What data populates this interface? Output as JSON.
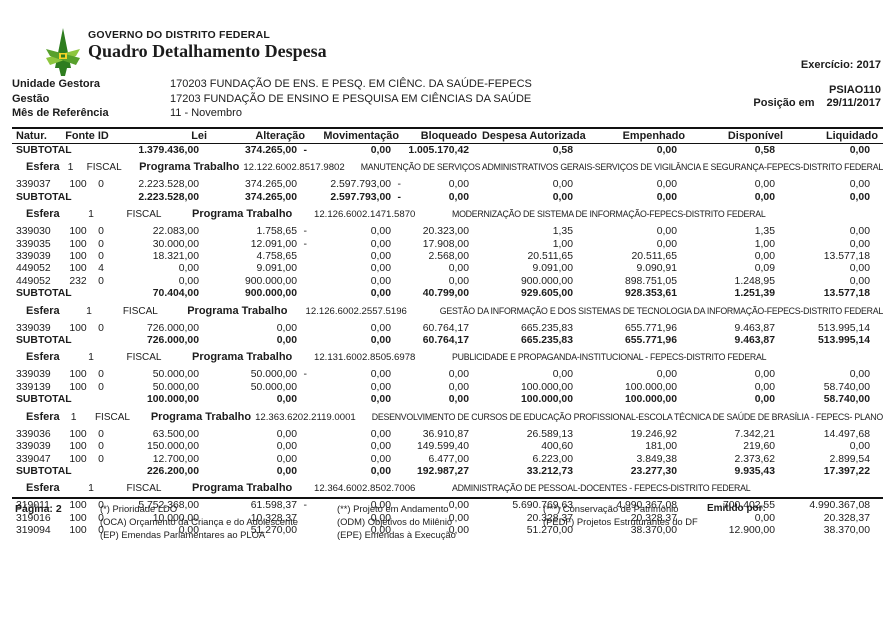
{
  "header": {
    "government": "GOVERNO DO DISTRITO FEDERAL",
    "title": "Quadro Detalhamento Despesa",
    "exercicio": "Exercício: 2017",
    "report_code": "PSIAO110",
    "posicao_label": "Posição em",
    "posicao_value": "29/11/2017",
    "logo_colors": {
      "dark_green": "#2e7d1f",
      "light_green": "#8dc63f",
      "accent_yellow": "#f5d327"
    }
  },
  "info": {
    "unidade_gestora_label": "Unidade Gestora",
    "unidade_gestora_value": "170203 FUNDAÇÃO DE ENS. E PESQ. EM CIÊNC. DA SAÚDE-FEPECS",
    "gestao_label": "Gestão",
    "gestao_value": "17203   FUNDAÇÃO DE ENSINO E PESQUISA EM CIÊNCIAS DA SAÚDE",
    "mes_label": "Mês de Referência",
    "mes_value": "11 - Novembro"
  },
  "table": {
    "columns": {
      "natur": "Natur.",
      "fonte_id": "Fonte ID",
      "lei": "Lei",
      "alteracao": "Alteração",
      "movimentacao": "Movimentação",
      "bloqueado": "Bloqueado",
      "despesa_autorizada": "Despesa Autorizada",
      "empenhado": "Empenhado",
      "disponivel": "Disponível",
      "liquidado": "Liquidado"
    },
    "row_labels": {
      "subtotal": "SUBTOTAL",
      "esfera": "Esfera",
      "programa": "Programa Trabalho"
    },
    "grand_subtotal": [
      "1.379.436,00",
      "374.265,00 -",
      "0,00",
      "1.005.170,42",
      "0,58",
      "0,00",
      "0,58",
      "0,00"
    ],
    "sections": [
      {
        "esfera_num": "1",
        "tipo": "FISCAL",
        "codigo": "12.122.6002.8517.9802",
        "descricao": "MANUTENÇÃO DE SERVIÇOS ADMINISTRATIVOS GERAIS-SERVIÇOS DE VIGILÂNCIA E SEGURANÇA-FEPECS-DISTRITO FEDERAL",
        "rows": [
          {
            "natur": "339037",
            "fonte": "100",
            "id": "0",
            "values": [
              "2.223.528,00",
              "374.265,00",
              "2.597.793,00 -",
              "0,00",
              "0,00",
              "0,00",
              "0,00",
              "0,00"
            ]
          }
        ],
        "subtotal": [
          "2.223.528,00",
          "374.265,00",
          "2.597.793,00 -",
          "0,00",
          "0,00",
          "0,00",
          "0,00",
          "0,00"
        ]
      },
      {
        "esfera_num": "1",
        "tipo": "FISCAL",
        "codigo": "12.126.6002.1471.5870",
        "descricao": "MODERNIZAÇÃO DE SISTEMA DE INFORMAÇÃO-FEPECS-DISTRITO FEDERAL",
        "rows": [
          {
            "natur": "339030",
            "fonte": "100",
            "id": "0",
            "values": [
              "22.083,00",
              "1.758,65 -",
              "0,00",
              "20.323,00",
              "1,35",
              "0,00",
              "1,35",
              "0,00"
            ]
          },
          {
            "natur": "339035",
            "fonte": "100",
            "id": "0",
            "values": [
              "30.000,00",
              "12.091,00 -",
              "0,00",
              "17.908,00",
              "1,00",
              "0,00",
              "1,00",
              "0,00"
            ]
          },
          {
            "natur": "339039",
            "fonte": "100",
            "id": "0",
            "values": [
              "18.321,00",
              "4.758,65",
              "0,00",
              "2.568,00",
              "20.511,65",
              "20.511,65",
              "0,00",
              "13.577,18"
            ]
          },
          {
            "natur": "449052",
            "fonte": "100",
            "id": "4",
            "values": [
              "0,00",
              "9.091,00",
              "0,00",
              "0,00",
              "9.091,00",
              "9.090,91",
              "0,09",
              "0,00"
            ]
          },
          {
            "natur": "449052",
            "fonte": "232",
            "id": "0",
            "values": [
              "0,00",
              "900.000,00",
              "0,00",
              "0,00",
              "900.000,00",
              "898.751,05",
              "1.248,95",
              "0,00"
            ]
          }
        ],
        "subtotal": [
          "70.404,00",
          "900.000,00",
          "0,00",
          "40.799,00",
          "929.605,00",
          "928.353,61",
          "1.251,39",
          "13.577,18"
        ]
      },
      {
        "esfera_num": "1",
        "tipo": "FISCAL",
        "codigo": "12.126.6002.2557.5196",
        "descricao": "GESTÃO DA INFORMAÇÃO  E DOS SISTEMAS DE TECNOLOGIA DA INFORMAÇÃO-FEPECS-DISTRITO FEDERAL",
        "rows": [
          {
            "natur": "339039",
            "fonte": "100",
            "id": "0",
            "values": [
              "726.000,00",
              "0,00",
              "0,00",
              "60.764,17",
              "665.235,83",
              "655.771,96",
              "9.463,87",
              "513.995,14"
            ]
          }
        ],
        "subtotal": [
          "726.000,00",
          "0,00",
          "0,00",
          "60.764,17",
          "665.235,83",
          "655.771,96",
          "9.463,87",
          "513.995,14"
        ]
      },
      {
        "esfera_num": "1",
        "tipo": "FISCAL",
        "codigo": "12.131.6002.8505.6978",
        "descricao": "PUBLICIDADE E PROPAGANDA-INSTITUCIONAL - FEPECS-DISTRITO FEDERAL",
        "rows": [
          {
            "natur": "339039",
            "fonte": "100",
            "id": "0",
            "values": [
              "50.000,00",
              "50.000,00 -",
              "0,00",
              "0,00",
              "0,00",
              "0,00",
              "0,00",
              "0,00"
            ]
          },
          {
            "natur": "339139",
            "fonte": "100",
            "id": "0",
            "values": [
              "50.000,00",
              "50.000,00",
              "0,00",
              "0,00",
              "100.000,00",
              "100.000,00",
              "0,00",
              "58.740,00"
            ]
          }
        ],
        "subtotal": [
          "100.000,00",
          "0,00",
          "0,00",
          "0,00",
          "100.000,00",
          "100.000,00",
          "0,00",
          "58.740,00"
        ]
      },
      {
        "esfera_num": "1",
        "tipo": "FISCAL",
        "codigo": "12.363.6202.2119.0001",
        "descricao": "DESENVOLVIMENTO DE CURSOS DE EDUCAÇÃO PROFISSIONAL-ESCOLA TÉCNICA DE SAÚDE DE BRASÍLIA - FEPECS- PLANO",
        "rows": [
          {
            "natur": "339036",
            "fonte": "100",
            "id": "0",
            "values": [
              "63.500,00",
              "0,00",
              "0,00",
              "36.910,87",
              "26.589,13",
              "19.246,92",
              "7.342,21",
              "14.497,68"
            ]
          },
          {
            "natur": "339039",
            "fonte": "100",
            "id": "0",
            "values": [
              "150.000,00",
              "0,00",
              "0,00",
              "149.599,40",
              "400,60",
              "181,00",
              "219,60",
              "0,00"
            ]
          },
          {
            "natur": "339047",
            "fonte": "100",
            "id": "0",
            "values": [
              "12.700,00",
              "0,00",
              "0,00",
              "6.477,00",
              "6.223,00",
              "3.849,38",
              "2.373,62",
              "2.899,54"
            ]
          }
        ],
        "subtotal": [
          "226.200,00",
          "0,00",
          "0,00",
          "192.987,27",
          "33.212,73",
          "23.277,30",
          "9.935,43",
          "17.397,22"
        ]
      },
      {
        "esfera_num": "1",
        "tipo": "FISCAL",
        "codigo": "12.364.6002.8502.7006",
        "descricao": "ADMINISTRAÇÃO DE PESSOAL-DOCENTES - FEPECS-DISTRITO FEDERAL",
        "rows": [
          {
            "natur": "319011",
            "fonte": "100",
            "id": "0",
            "values": [
              "5.752.368,00",
              "61.598,37 -",
              "0,00",
              "0,00",
              "5.690.769,63",
              "4.990.367,08",
              "700.402,55",
              "4.990.367,08"
            ]
          },
          {
            "natur": "319016",
            "fonte": "100",
            "id": "0",
            "values": [
              "10.000,00",
              "10.328,37",
              "0,00",
              "0,00",
              "20.328,37",
              "20.328,37",
              "0,00",
              "20.328,37"
            ]
          },
          {
            "natur": "319094",
            "fonte": "100",
            "id": "0",
            "values": [
              "0,00",
              "51.270,00",
              "0,00",
              "0,00",
              "51.270,00",
              "38.370,00",
              "12.900,00",
              "38.370,00"
            ]
          }
        ],
        "subtotal": null
      }
    ]
  },
  "footer": {
    "pagina_label": "Página:",
    "pagina_value": "2",
    "legend_col1": [
      "(*)  Prioridade LDO",
      "(OCA)  Orçamento da Criança e do Adolescente",
      "(EP)  Emendas Parlamentares ao PLOA"
    ],
    "legend_col2": [
      "(**)  Projeto em Andamento",
      "(ODM) Objetivos do Milênio",
      "(EPE) Emendas à Execução"
    ],
    "legend_col3": [
      "(***)  Conservação de Patrimônio",
      "(PEDF) Projetos Estruturantes do DF"
    ],
    "emitido_label": "Emitido por:"
  }
}
